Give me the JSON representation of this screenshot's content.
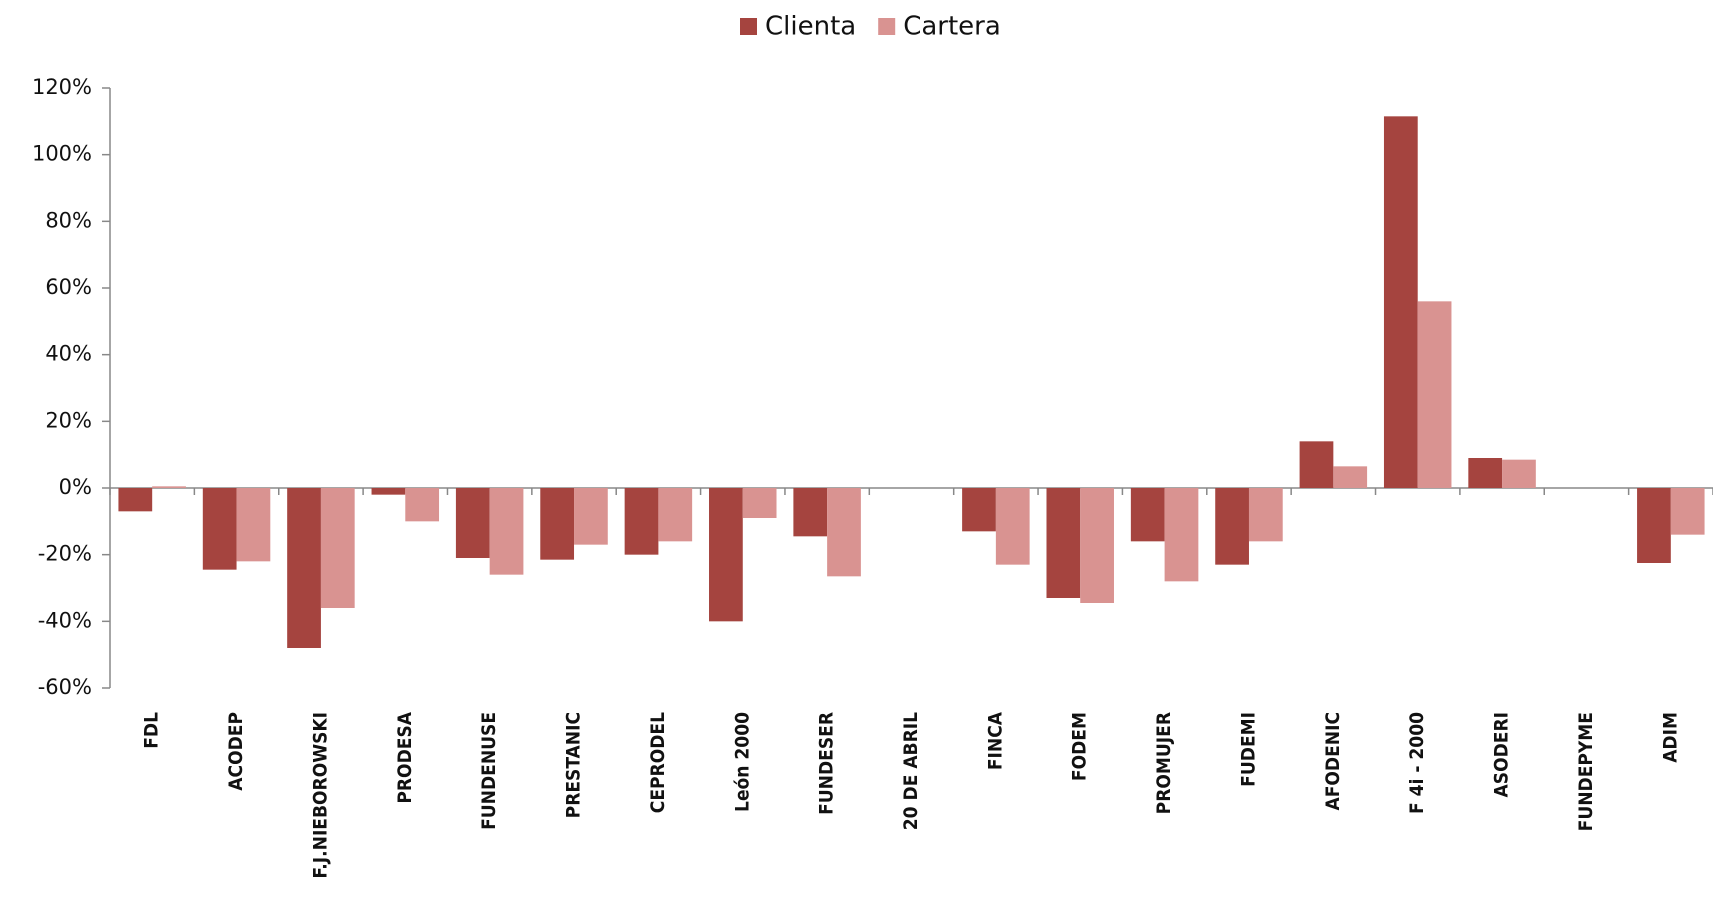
{
  "chart_data": {
    "type": "bar",
    "categories": [
      "FDL",
      "ACODEP",
      "F.J.NIEBOROWSKI",
      "PRODESA",
      "FUNDENUSE",
      "PRESTANIC",
      "CEPRODEL",
      "León 2000",
      "FUNDESER",
      "20 DE ABRIL",
      "FINCA",
      "FODEM",
      "PROMUJER",
      "FUDEMI",
      "AFODENIC",
      "F 4i - 2000",
      "ASODERI",
      "FUNDEPYME",
      "ADIM"
    ],
    "series": [
      {
        "name": "Clienta",
        "color": "#a5443f",
        "values": [
          -7,
          -24.5,
          -48,
          -2,
          -21,
          -21.5,
          -20,
          -40,
          -14.5,
          0,
          -13,
          -33,
          -16,
          -23,
          14,
          111.5,
          9,
          0,
          -22.5
        ]
      },
      {
        "name": "Cartera",
        "color": "#d99391",
        "values": [
          0.5,
          -22,
          -36,
          -10,
          -26,
          -17,
          -16,
          -9,
          -26.5,
          0,
          -23,
          -34.5,
          -28,
          -16,
          6.5,
          56,
          8.5,
          0,
          -14
        ]
      }
    ],
    "ylim": [
      -60,
      120
    ],
    "yticks": [
      {
        "value": -60,
        "label": "-60%"
      },
      {
        "value": -40,
        "label": "-40%"
      },
      {
        "value": -20,
        "label": "-20%"
      },
      {
        "value": 0,
        "label": "0%"
      },
      {
        "value": 20,
        "label": "20%"
      },
      {
        "value": 40,
        "label": "40%"
      },
      {
        "value": 60,
        "label": "60%"
      },
      {
        "value": 80,
        "label": "80%"
      },
      {
        "value": 100,
        "label": "100%"
      },
      {
        "value": 120,
        "label": "120%"
      }
    ],
    "legend": "top"
  }
}
